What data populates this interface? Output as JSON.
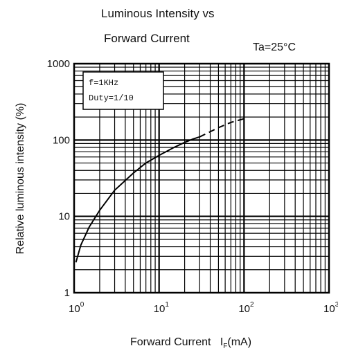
{
  "chart_data": {
    "type": "line",
    "title_line1": "Luminous Intensity vs",
    "title_line2": "Forward Current",
    "condition": "Ta=25°C",
    "xlabel": "Forward Current",
    "xlabel_symbol": "I",
    "xlabel_sub": "F",
    "xlabel_unit": "(mA)",
    "ylabel": "Relative luminous intensity   (%)",
    "xscale": "log",
    "yscale": "log",
    "xlim": [
      1,
      1000
    ],
    "ylim": [
      1,
      1000
    ],
    "x_tick_labels": [
      {
        "value": 1,
        "base": "10",
        "exp": "0"
      },
      {
        "value": 10,
        "base": "10",
        "exp": "1"
      },
      {
        "value": 100,
        "base": "10",
        "exp": "2"
      },
      {
        "value": 1000,
        "base": "10",
        "exp": "3"
      }
    ],
    "y_tick_labels": [
      {
        "value": 1,
        "label": "1"
      },
      {
        "value": 10,
        "label": "10"
      },
      {
        "value": 100,
        "label": "100"
      },
      {
        "value": 1000,
        "label": "1000"
      }
    ],
    "grid": true,
    "annotation": [
      "f=1KHz",
      "Duty=1/10"
    ],
    "series": [
      {
        "style": "solid",
        "x": [
          1.05,
          1.2,
          1.5,
          2,
          3,
          5,
          7,
          10,
          15,
          20,
          25,
          30
        ],
        "y": [
          2.5,
          4.2,
          7.2,
          12,
          22,
          37,
          50,
          63,
          80,
          93,
          103,
          110
        ]
      },
      {
        "style": "dashed",
        "x": [
          30,
          50,
          70,
          100
        ],
        "y": [
          110,
          145,
          170,
          190
        ]
      }
    ]
  }
}
